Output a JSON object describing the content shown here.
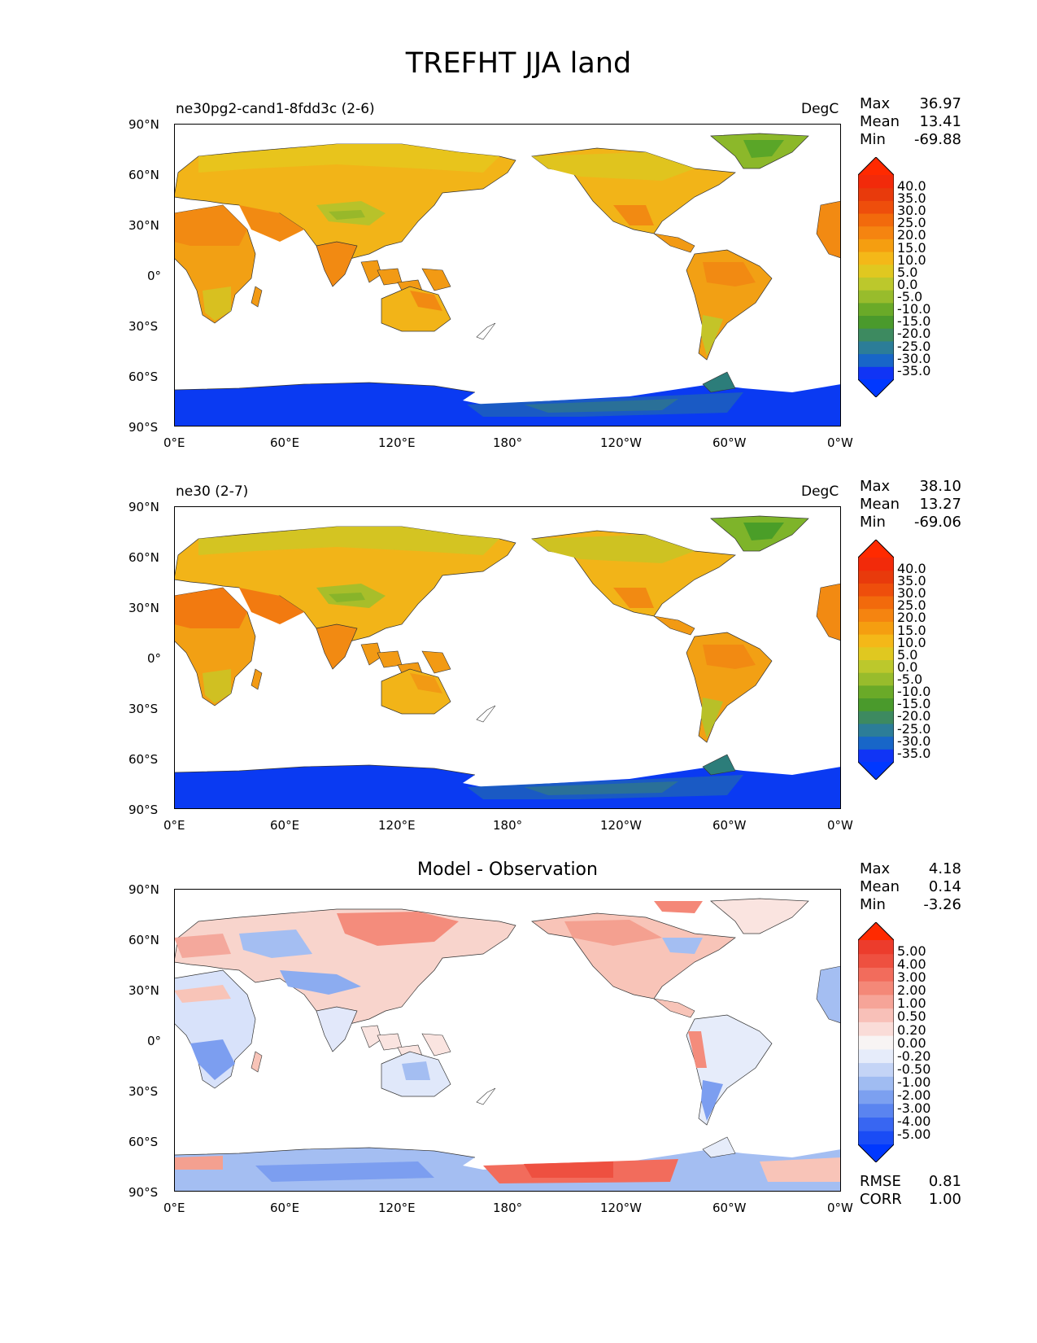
{
  "figure": {
    "title": "TREFHT JJA land"
  },
  "axes": {
    "lat_labels": [
      "90°N",
      "60°N",
      "30°N",
      "0°",
      "30°S",
      "60°S",
      "90°S"
    ],
    "lon_labels": [
      "0°E",
      "60°E",
      "120°E",
      "180°",
      "120°W",
      "60°W",
      "0°W"
    ]
  },
  "panels": [
    {
      "left_title": "ne30pg2-cand1-8fdd3c (2-6)",
      "center_title": "",
      "units": "DegC",
      "stats": [
        {
          "label": "Max",
          "value": "36.97"
        },
        {
          "label": "Mean",
          "value": "13.41"
        },
        {
          "label": "Min",
          "value": "-69.88"
        }
      ],
      "colorbar": {
        "ticks": [
          "40.0",
          "35.0",
          "30.0",
          "25.0",
          "20.0",
          "15.0",
          "10.0",
          "5.0",
          "0.0",
          "-5.0",
          "-10.0",
          "-15.0",
          "-20.0",
          "-25.0",
          "-30.0",
          "-35.0"
        ],
        "colors": [
          "#1034f5",
          "#1866c8",
          "#2c7d98",
          "#3d8a60",
          "#4a9a2c",
          "#6aaa28",
          "#98bc2c",
          "#bcc82c",
          "#e0c820",
          "#f4b818",
          "#f59e10",
          "#f58410",
          "#f26a0c",
          "#ee4e0c",
          "#e83a0c",
          "#f22a0a"
        ],
        "max_color": "#ff2a00",
        "min_color": "#0038ff"
      }
    },
    {
      "left_title": "ne30 (2-7)",
      "center_title": "",
      "units": "DegC",
      "stats": [
        {
          "label": "Max",
          "value": "38.10"
        },
        {
          "label": "Mean",
          "value": "13.27"
        },
        {
          "label": "Min",
          "value": "-69.06"
        }
      ],
      "colorbar": {
        "ticks": [
          "40.0",
          "35.0",
          "30.0",
          "25.0",
          "20.0",
          "15.0",
          "10.0",
          "5.0",
          "0.0",
          "-5.0",
          "-10.0",
          "-15.0",
          "-20.0",
          "-25.0",
          "-30.0",
          "-35.0"
        ],
        "colors": [
          "#1034f5",
          "#1866c8",
          "#2c7d98",
          "#3d8a60",
          "#4a9a2c",
          "#6aaa28",
          "#98bc2c",
          "#bcc82c",
          "#e0c820",
          "#f4b818",
          "#f59e10",
          "#f58410",
          "#f26a0c",
          "#ee4e0c",
          "#e83a0c",
          "#f22a0a"
        ],
        "max_color": "#ff2a00",
        "min_color": "#0038ff"
      }
    },
    {
      "left_title": "",
      "center_title": "Model - Observation",
      "units": "",
      "stats": [
        {
          "label": "Max",
          "value": "4.18"
        },
        {
          "label": "Mean",
          "value": "0.14"
        },
        {
          "label": "Min",
          "value": "-3.26"
        }
      ],
      "extra_stats": [
        {
          "label": "RMSE",
          "value": "0.81"
        },
        {
          "label": "CORR",
          "value": "1.00"
        }
      ],
      "colorbar": {
        "ticks": [
          "5.00",
          "4.00",
          "3.00",
          "2.00",
          "1.00",
          "0.50",
          "0.20",
          "0.00",
          "-0.20",
          "-0.50",
          "-1.00",
          "-2.00",
          "-3.00",
          "-4.00",
          "-5.00"
        ],
        "colors": [
          "#1a4cf5",
          "#3866f2",
          "#5a84f0",
          "#7ca0f0",
          "#a0bcf2",
          "#c4d4f6",
          "#e6ecfa",
          "#f8f4f4",
          "#fadcd8",
          "#f8c0b8",
          "#f6a498",
          "#f48878",
          "#f26c5c",
          "#ee5040",
          "#ec3c2c"
        ],
        "max_color": "#ff2a00",
        "min_color": "#0038ff"
      }
    }
  ]
}
